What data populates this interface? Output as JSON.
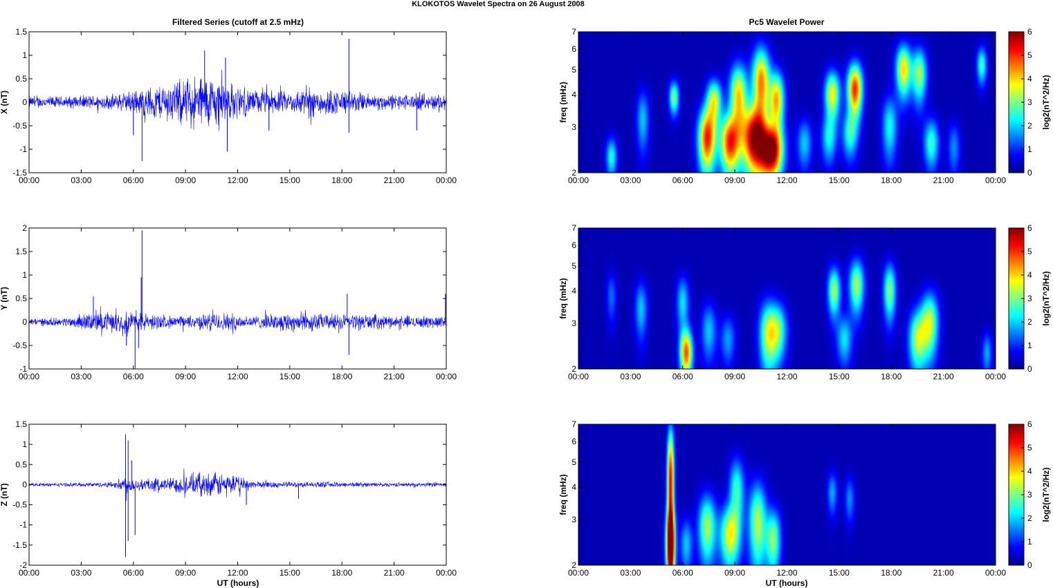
{
  "figure": {
    "suptitle": "KLOKOTOS Wavelet Spectra on 26 August    2008",
    "left_title": "Filtered Series (cutoff at 2.5 mHz)",
    "right_title": "Pc5 Wavelet Power",
    "xlabel": "UT (hours)"
  },
  "colors": {
    "trace": "#0000ff",
    "axis": "#000000",
    "colormap": "jet",
    "background_low": "#00008f"
  },
  "chart_data": [
    {
      "type": "line",
      "name": "X filtered series",
      "ylabel": "X (nT)",
      "xlim": [
        0,
        24
      ],
      "ylim": [
        -1.5,
        1.5
      ],
      "xticks": [
        "00:00",
        "03:00",
        "06:00",
        "09:00",
        "12:00",
        "15:00",
        "18:00",
        "21:00",
        "00:00"
      ],
      "yticks": [
        "-1.5",
        "-1",
        "-0.5",
        "0",
        "0.5",
        "1",
        "1.5"
      ],
      "yticks_values": [
        -1.5,
        -1,
        -0.5,
        0,
        0.5,
        1,
        1.5
      ],
      "envelope": {
        "x": [
          0,
          2,
          4,
          5,
          6,
          7,
          8,
          9,
          10,
          11,
          11.5,
          12,
          13,
          14,
          15,
          16,
          17,
          18,
          18.3,
          19,
          20,
          21,
          22,
          23,
          24
        ],
        "amplitude": [
          0.15,
          0.15,
          0.18,
          0.2,
          0.3,
          0.4,
          0.5,
          0.6,
          0.7,
          0.65,
          0.5,
          0.4,
          0.3,
          0.3,
          0.25,
          0.4,
          0.35,
          0.3,
          0.3,
          0.25,
          0.2,
          0.2,
          0.2,
          0.2,
          0.2
        ]
      },
      "spikes": [
        {
          "x": 6.5,
          "y": -1.25
        },
        {
          "x": 6.0,
          "y": -0.7
        },
        {
          "x": 10.1,
          "y": 1.1
        },
        {
          "x": 11.4,
          "y": -1.05
        },
        {
          "x": 11.3,
          "y": 0.95
        },
        {
          "x": 18.4,
          "y": 1.35
        },
        {
          "x": 18.4,
          "y": -0.65
        },
        {
          "x": 22.3,
          "y": -0.6
        },
        {
          "x": 13.8,
          "y": -0.6
        }
      ]
    },
    {
      "type": "line",
      "name": "Y filtered series",
      "ylabel": "Y (nT)",
      "xlim": [
        0,
        24
      ],
      "ylim": [
        -1,
        2
      ],
      "xticks": [
        "00:00",
        "03:00",
        "06:00",
        "09:00",
        "12:00",
        "15:00",
        "18:00",
        "21:00",
        "00:00"
      ],
      "yticks": [
        "-1",
        "-0.5",
        "0",
        "0.5",
        "1",
        "1.5",
        "2"
      ],
      "yticks_values": [
        -1,
        -0.5,
        0,
        0.5,
        1,
        1.5,
        2
      ],
      "envelope": {
        "x": [
          0,
          2,
          3,
          4,
          5,
          6,
          7,
          8,
          9,
          10,
          11,
          12,
          13,
          14,
          15,
          16,
          17,
          18,
          19,
          20,
          21,
          22,
          23,
          24
        ],
        "amplitude": [
          0.1,
          0.1,
          0.2,
          0.25,
          0.25,
          0.3,
          0.2,
          0.15,
          0.15,
          0.2,
          0.25,
          0.2,
          0.15,
          0.2,
          0.25,
          0.25,
          0.2,
          0.2,
          0.2,
          0.18,
          0.15,
          0.15,
          0.15,
          0.15
        ]
      },
      "spikes": [
        {
          "x": 6.5,
          "y": 1.95
        },
        {
          "x": 6.45,
          "y": 0.95
        },
        {
          "x": 6.1,
          "y": -1.0
        },
        {
          "x": 6.3,
          "y": -0.55
        },
        {
          "x": 18.4,
          "y": -0.7
        },
        {
          "x": 18.3,
          "y": 0.6
        },
        {
          "x": 23.95,
          "y": 0.6
        },
        {
          "x": 3.7,
          "y": 0.55
        },
        {
          "x": 5.6,
          "y": -0.5
        }
      ]
    },
    {
      "type": "line",
      "name": "Z filtered series",
      "ylabel": "Z (nT)",
      "xlim": [
        0,
        24
      ],
      "ylim": [
        -2,
        1.5
      ],
      "xticks": [
        "00:00",
        "03:00",
        "06:00",
        "09:00",
        "12:00",
        "15:00",
        "18:00",
        "21:00",
        "00:00"
      ],
      "yticks": [
        "-2",
        "-1.5",
        "-1",
        "-0.5",
        "0",
        "0.5",
        "1",
        "1.5"
      ],
      "yticks_values": [
        -2,
        -1.5,
        -1,
        -0.5,
        0,
        0.5,
        1,
        1.5
      ],
      "envelope": {
        "x": [
          0,
          2,
          4,
          5,
          5.5,
          6,
          7,
          8,
          9,
          10,
          11,
          12,
          13,
          14,
          15,
          16,
          18,
          20,
          22,
          24
        ],
        "amplitude": [
          0.05,
          0.05,
          0.07,
          0.1,
          0.3,
          0.2,
          0.2,
          0.2,
          0.3,
          0.35,
          0.35,
          0.25,
          0.1,
          0.1,
          0.08,
          0.08,
          0.08,
          0.06,
          0.06,
          0.06
        ]
      },
      "spikes": [
        {
          "x": 5.55,
          "y": 1.25
        },
        {
          "x": 5.55,
          "y": -1.8
        },
        {
          "x": 5.7,
          "y": 1.1
        },
        {
          "x": 5.7,
          "y": -1.4
        },
        {
          "x": 6.1,
          "y": -1.25
        },
        {
          "x": 5.9,
          "y": 0.6
        },
        {
          "x": 12.5,
          "y": -0.5
        },
        {
          "x": 15.5,
          "y": -0.35
        }
      ]
    },
    {
      "type": "heatmap",
      "name": "X wavelet power",
      "ylabel": "freq (mHz)",
      "colorbar_label": "log2(nT^2/Hz)",
      "clim": [
        0,
        6
      ],
      "xlim": [
        0,
        24
      ],
      "ylim": [
        2,
        7
      ],
      "yscale": "log",
      "xticks": [
        "00:00",
        "03:00",
        "06:00",
        "09:00",
        "12:00",
        "15:00",
        "18:00",
        "21:00",
        "00:00"
      ],
      "yticks": [
        "2",
        "3",
        "4",
        "5",
        "6",
        "7"
      ],
      "yticks_values": [
        2,
        3,
        4,
        5,
        6,
        7
      ],
      "cbticks": [
        "0",
        "1",
        "2",
        "3",
        "4",
        "5",
        "6"
      ],
      "blobs": [
        {
          "t": 1.9,
          "f": 2.3,
          "amp": 2.3,
          "dt": 0.22,
          "df": 0.28
        },
        {
          "t": 3.7,
          "f": 3.2,
          "amp": 1.8,
          "dt": 0.25,
          "df": 0.6
        },
        {
          "t": 5.5,
          "f": 3.9,
          "amp": 3.0,
          "dt": 0.2,
          "df": 0.4
        },
        {
          "t": 7.4,
          "f": 2.7,
          "amp": 5.2,
          "dt": 0.35,
          "df": 0.55
        },
        {
          "t": 7.8,
          "f": 3.8,
          "amp": 3.5,
          "dt": 0.3,
          "df": 0.5
        },
        {
          "t": 8.7,
          "f": 2.6,
          "amp": 5.0,
          "dt": 0.4,
          "df": 0.5
        },
        {
          "t": 9.2,
          "f": 4.0,
          "amp": 4.0,
          "dt": 0.35,
          "df": 0.8
        },
        {
          "t": 10.1,
          "f": 2.7,
          "amp": 5.8,
          "dt": 0.5,
          "df": 0.6
        },
        {
          "t": 10.5,
          "f": 4.5,
          "amp": 4.6,
          "dt": 0.35,
          "df": 1.0
        },
        {
          "t": 11.1,
          "f": 2.4,
          "amp": 6.0,
          "dt": 0.45,
          "df": 0.4
        },
        {
          "t": 11.4,
          "f": 3.8,
          "amp": 4.2,
          "dt": 0.3,
          "df": 0.7
        },
        {
          "t": 13.0,
          "f": 2.6,
          "amp": 1.8,
          "dt": 0.3,
          "df": 0.4
        },
        {
          "t": 14.6,
          "f": 4.0,
          "amp": 3.8,
          "dt": 0.3,
          "df": 0.6
        },
        {
          "t": 14.4,
          "f": 2.7,
          "amp": 2.0,
          "dt": 0.3,
          "df": 0.4
        },
        {
          "t": 15.9,
          "f": 4.2,
          "amp": 5.2,
          "dt": 0.3,
          "df": 0.7
        },
        {
          "t": 15.6,
          "f": 2.8,
          "amp": 2.2,
          "dt": 0.3,
          "df": 0.4
        },
        {
          "t": 17.9,
          "f": 3.0,
          "amp": 2.2,
          "dt": 0.3,
          "df": 0.6
        },
        {
          "t": 18.7,
          "f": 5.0,
          "amp": 4.0,
          "dt": 0.3,
          "df": 0.8
        },
        {
          "t": 19.6,
          "f": 4.8,
          "amp": 3.2,
          "dt": 0.3,
          "df": 0.8
        },
        {
          "t": 20.3,
          "f": 2.6,
          "amp": 2.5,
          "dt": 0.3,
          "df": 0.4
        },
        {
          "t": 21.6,
          "f": 2.5,
          "amp": 1.4,
          "dt": 0.25,
          "df": 0.4
        },
        {
          "t": 23.2,
          "f": 5.2,
          "amp": 2.5,
          "dt": 0.2,
          "df": 0.6
        }
      ]
    },
    {
      "type": "heatmap",
      "name": "Y wavelet power",
      "ylabel": "freq (mHz)",
      "colorbar_label": "log2(nT^2/Hz)",
      "clim": [
        0,
        6
      ],
      "xlim": [
        0,
        24
      ],
      "ylim": [
        2,
        7
      ],
      "yscale": "log",
      "xticks": [
        "00:00",
        "03:00",
        "06:00",
        "09:00",
        "12:00",
        "15:00",
        "18:00",
        "21:00",
        "00:00"
      ],
      "yticks": [
        "2",
        "3",
        "4",
        "5",
        "6",
        "7"
      ],
      "yticks_values": [
        2,
        3,
        4,
        5,
        6,
        7
      ],
      "cbticks": [
        "0",
        "1",
        "2",
        "3",
        "4",
        "5",
        "6"
      ],
      "blobs": [
        {
          "t": 1.9,
          "f": 3.8,
          "amp": 1.2,
          "dt": 0.2,
          "df": 0.6
        },
        {
          "t": 3.6,
          "f": 3.4,
          "amp": 1.8,
          "dt": 0.25,
          "df": 0.6
        },
        {
          "t": 6.2,
          "f": 2.3,
          "amp": 4.8,
          "dt": 0.25,
          "df": 0.35
        },
        {
          "t": 6.0,
          "f": 3.6,
          "amp": 2.0,
          "dt": 0.25,
          "df": 0.6
        },
        {
          "t": 7.5,
          "f": 2.8,
          "amp": 1.8,
          "dt": 0.3,
          "df": 0.5
        },
        {
          "t": 8.6,
          "f": 2.6,
          "amp": 1.5,
          "dt": 0.3,
          "df": 0.4
        },
        {
          "t": 10.9,
          "f": 2.7,
          "amp": 3.2,
          "dt": 0.35,
          "df": 0.6
        },
        {
          "t": 11.5,
          "f": 2.8,
          "amp": 2.6,
          "dt": 0.35,
          "df": 0.5
        },
        {
          "t": 14.7,
          "f": 4.0,
          "amp": 3.2,
          "dt": 0.25,
          "df": 0.6
        },
        {
          "t": 15.3,
          "f": 2.6,
          "amp": 2.0,
          "dt": 0.3,
          "df": 0.4
        },
        {
          "t": 16.0,
          "f": 4.2,
          "amp": 3.2,
          "dt": 0.3,
          "df": 0.7
        },
        {
          "t": 17.9,
          "f": 4.0,
          "amp": 3.0,
          "dt": 0.25,
          "df": 0.7
        },
        {
          "t": 19.5,
          "f": 2.6,
          "amp": 3.2,
          "dt": 0.35,
          "df": 0.5
        },
        {
          "t": 20.2,
          "f": 3.0,
          "amp": 3.4,
          "dt": 0.35,
          "df": 0.6
        },
        {
          "t": 23.5,
          "f": 2.3,
          "amp": 1.6,
          "dt": 0.2,
          "df": 0.3
        }
      ]
    },
    {
      "type": "heatmap",
      "name": "Z wavelet power",
      "ylabel": "freq (mHz)",
      "colorbar_label": "log2(nT^2/Hz)",
      "clim": [
        0,
        6
      ],
      "xlim": [
        0,
        24
      ],
      "ylim": [
        2,
        7
      ],
      "yscale": "log",
      "xticks": [
        "00:00",
        "03:00",
        "06:00",
        "09:00",
        "12:00",
        "15:00",
        "18:00",
        "21:00",
        "00:00"
      ],
      "yticks": [
        "2",
        "3",
        "4",
        "5",
        "6",
        "7"
      ],
      "yticks_values": [
        2,
        3,
        4,
        5,
        6,
        7
      ],
      "cbticks": [
        "0",
        "1",
        "2",
        "3",
        "4",
        "5",
        "6"
      ],
      "blobs": [
        {
          "t": 5.3,
          "f": 2.4,
          "amp": 6.0,
          "dt": 0.18,
          "df": 0.55
        },
        {
          "t": 5.3,
          "f": 4.2,
          "amp": 5.6,
          "dt": 0.14,
          "df": 1.6
        },
        {
          "t": 6.2,
          "f": 2.4,
          "amp": 1.8,
          "dt": 0.25,
          "df": 0.4
        },
        {
          "t": 7.4,
          "f": 2.8,
          "amp": 3.2,
          "dt": 0.35,
          "df": 0.6
        },
        {
          "t": 8.7,
          "f": 2.6,
          "amp": 3.6,
          "dt": 0.4,
          "df": 0.5
        },
        {
          "t": 9.1,
          "f": 3.9,
          "amp": 2.5,
          "dt": 0.3,
          "df": 0.8
        },
        {
          "t": 10.3,
          "f": 2.9,
          "amp": 3.3,
          "dt": 0.35,
          "df": 0.8
        },
        {
          "t": 11.2,
          "f": 2.5,
          "amp": 3.0,
          "dt": 0.3,
          "df": 0.5
        },
        {
          "t": 14.6,
          "f": 3.8,
          "amp": 1.6,
          "dt": 0.2,
          "df": 0.5
        },
        {
          "t": 15.6,
          "f": 3.6,
          "amp": 1.4,
          "dt": 0.2,
          "df": 0.5
        }
      ]
    }
  ]
}
